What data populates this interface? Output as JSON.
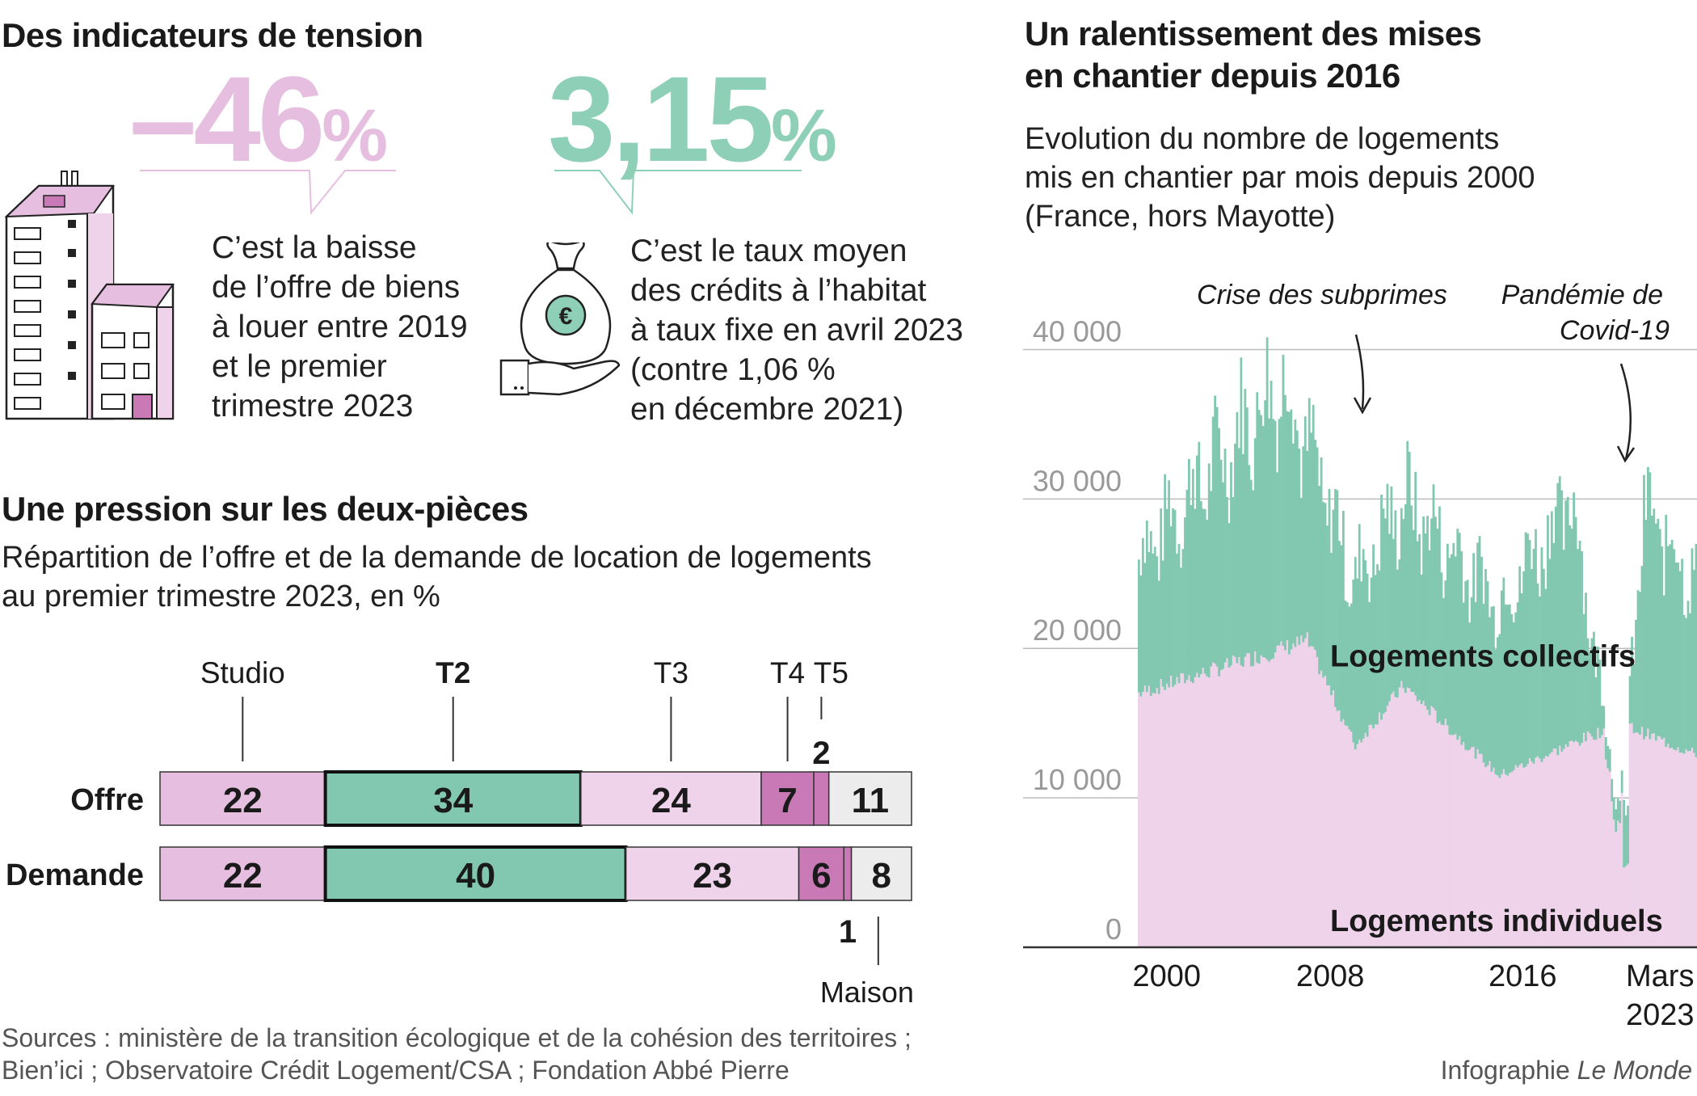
{
  "colors": {
    "pink": "#e6bee0",
    "pink_dark": "#c979b6",
    "pink_light": "#eed3ea",
    "green": "#82c8b0",
    "green_light": "#8ecfb7",
    "grey_light": "#ececec",
    "text": "#1a1a1a"
  },
  "left": {
    "section1_title": "Des indicateurs de tension",
    "stat1": {
      "value": "–46",
      "unit": "%",
      "text_lines": [
        "C’est la baisse",
        "de l’offre de biens",
        "à louer entre 2019",
        "et le premier",
        "trimestre 2023"
      ],
      "icon": "apartment-building-icon"
    },
    "stat2": {
      "value": "3,15",
      "unit": "%",
      "text_lines": [
        "C’est le taux moyen",
        "des crédits à l’habitat",
        "à taux fixe en avril 2023",
        "(contre 1,06 %",
        "en décembre 2021)"
      ],
      "icon": "money-bag-hand-icon",
      "icon_symbol": "€"
    },
    "section2_title": "Une pression sur les deux-pièces",
    "section2_subtitle_lines": [
      "Répartition de l’offre et de la demande de location de logements",
      "au premier trimestre 2023, en %"
    ]
  },
  "right": {
    "title_lines": [
      "Un ralentissement des mises",
      "en chantier depuis 2016"
    ],
    "subtitle_lines": [
      "Evolution du nombre de logements",
      "mis en chantier par mois depuis 2000",
      "(France, hors Mayotte)"
    ]
  },
  "footer": {
    "sources_lines": [
      "Sources : ministère de la transition écologique et de la cohésion des territoires ;",
      "Bien’ici ; Observatoire Crédit Logement/CSA ; Fondation Abbé Pierre"
    ],
    "credit_prefix": "Infographie ",
    "credit_brand": "Le Monde"
  },
  "chart_data": [
    {
      "type": "bar",
      "orientation": "horizontal",
      "stacked": true,
      "rows": [
        "Offre",
        "Demande"
      ],
      "categories": [
        "Studio",
        "T2",
        "T3",
        "T4",
        "T5",
        "Maison"
      ],
      "highlight": "T2",
      "series": [
        {
          "name": "Offre",
          "values": [
            22,
            34,
            24,
            7,
            2,
            11
          ]
        },
        {
          "name": "Demande",
          "values": [
            22,
            40,
            23,
            6,
            1,
            8
          ]
        }
      ],
      "value_labels": {
        "Offre": [
          "22",
          "34",
          "24",
          "7",
          "2",
          "11"
        ],
        "Demande": [
          "22",
          "40",
          "23",
          "6",
          "1",
          "8"
        ]
      }
    },
    {
      "type": "area",
      "stacked": true,
      "series": [
        {
          "name": "Logements individuels",
          "values_approx": {
            "2000": 17000,
            "2007": 20500,
            "2009": 13500,
            "2011": 17500,
            "2015": 11500,
            "2020": 15000,
            "2023": 13000
          }
        },
        {
          "name": "Logements collectifs",
          "values_approx": {
            "2000": 9000,
            "2006": 17000,
            "2009": 11000,
            "2011": 12500,
            "2015": 11500,
            "2018": 14000,
            "2023": 12000
          }
        }
      ],
      "totals_approx": {
        "2000": 26000,
        "2006": 38000,
        "2009": 24500,
        "2011": 30000,
        "2015": 23000,
        "2018": 30000,
        "2020": 9000,
        "2021": 29000,
        "2023": 25000
      },
      "x_ticks": [
        "2000",
        "2008",
        "2016",
        "Mars",
        "2023"
      ],
      "y_ticks": [
        "0",
        "10 000",
        "20 000",
        "30 000",
        "40 000"
      ],
      "ylim": [
        0,
        45000
      ],
      "xlim": [
        2000,
        2023.25
      ],
      "grid": true,
      "series_labels": [
        "Logements collectifs",
        "Logements individuels"
      ],
      "annotations": [
        {
          "lines": [
            "Crise des subprimes"
          ],
          "x": 2008
        },
        {
          "lines": [
            "Pandémie de",
            "Covid-19"
          ],
          "x": 2020.3
        }
      ]
    }
  ]
}
